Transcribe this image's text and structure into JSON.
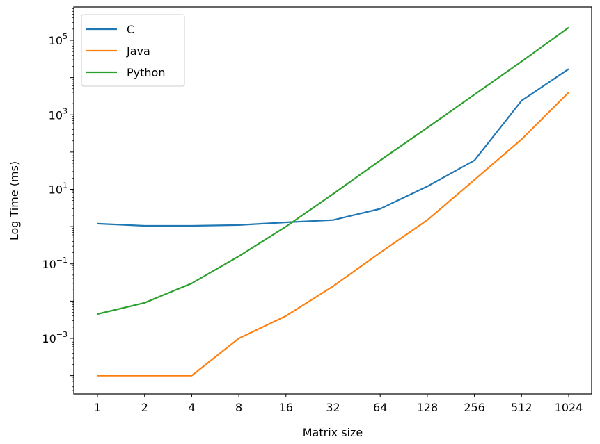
{
  "chart_data": {
    "type": "line",
    "xlabel": "Matrix size",
    "ylabel": "Log Time (ms)",
    "yscale": "log",
    "ylim": [
      2e-05,
      500000
    ],
    "grid": false,
    "legend_position": "top-left",
    "categories": [
      "1",
      "2",
      "4",
      "8",
      "16",
      "32",
      "64",
      "128",
      "256",
      "512",
      "1024"
    ],
    "y_ticks": [
      {
        "exp": -3,
        "base": "10",
        "power": "−3"
      },
      {
        "exp": -1,
        "base": "10",
        "power": "−1"
      },
      {
        "exp": 1,
        "base": "10",
        "power": "1"
      },
      {
        "exp": 3,
        "base": "10",
        "power": "3"
      },
      {
        "exp": 5,
        "base": "10",
        "power": "5"
      }
    ],
    "series": [
      {
        "name": "C",
        "color": "#1f77b4",
        "values": [
          1.2,
          1.05,
          1.05,
          1.1,
          1.3,
          1.5,
          3.0,
          12,
          60,
          2400,
          17000
        ]
      },
      {
        "name": "Java",
        "color": "#ff7f0e",
        "values": [
          0.0001,
          0.0001,
          0.0001,
          0.001,
          0.004,
          0.025,
          0.2,
          1.5,
          18,
          220,
          4000
        ]
      },
      {
        "name": "Python",
        "color": "#2ca02c",
        "values": [
          0.0045,
          0.009,
          0.03,
          0.16,
          1.0,
          7.5,
          60,
          450,
          3500,
          27000,
          220000
        ]
      }
    ]
  }
}
